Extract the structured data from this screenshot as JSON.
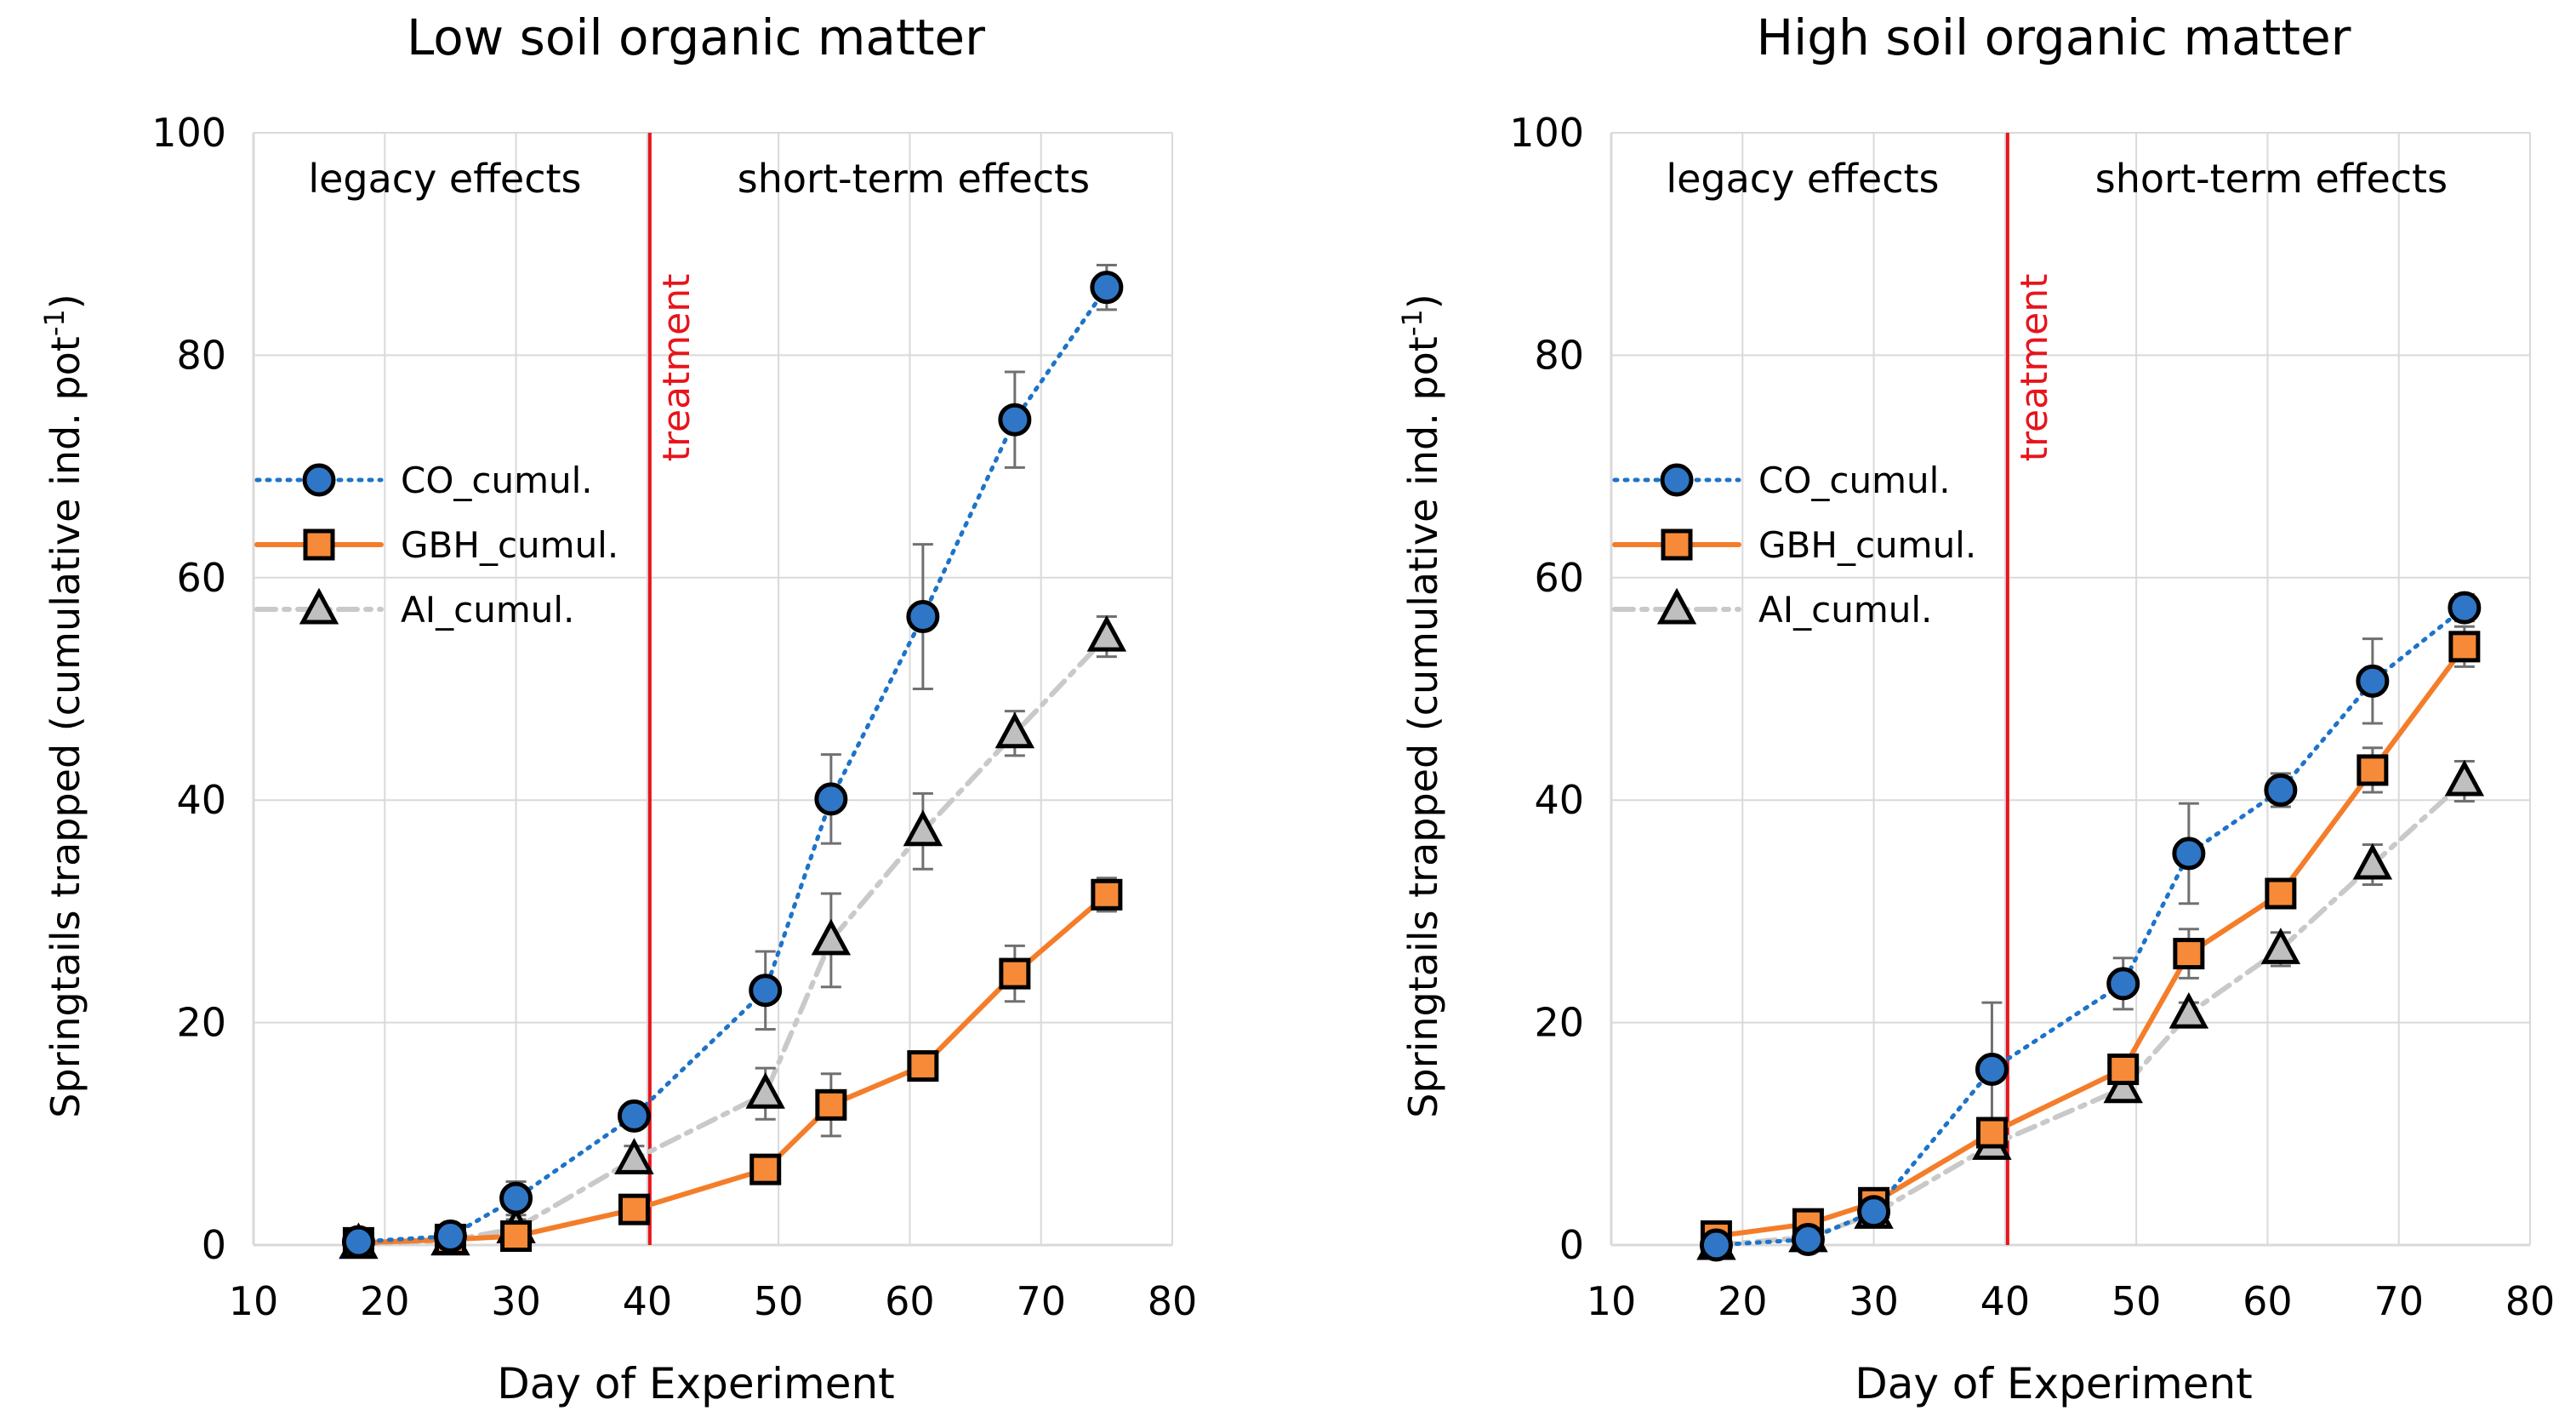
{
  "chart_data": [
    {
      "type": "line",
      "title": "Low soil organic matter",
      "xlabel": "Day of Experiment",
      "ylabel": "Springtails trapped (cumulative ind. pot",
      "ylabel_sup": "-1",
      "ylabel_close": ")",
      "xlim": [
        10,
        80
      ],
      "ylim": [
        0,
        100
      ],
      "xticks": [
        10,
        20,
        30,
        40,
        50,
        60,
        70,
        80
      ],
      "yticks": [
        0,
        20,
        40,
        60,
        80,
        100
      ],
      "grid": true,
      "treatment_day": 40,
      "annotations": {
        "legacy": "legacy effects",
        "short": "short-term effects",
        "treatment": "treatment"
      },
      "legend": [
        "CO_cumul.",
        "GBH_cumul.",
        "AI_cumul."
      ],
      "x": [
        18,
        25,
        30,
        39,
        49,
        54,
        61,
        68,
        75
      ],
      "series": [
        {
          "name": "CO_cumul.",
          "values": [
            0.3,
            0.8,
            4.2,
            11.6,
            22.9,
            40.1,
            56.5,
            74.2,
            86.1
          ],
          "errors": [
            0.3,
            0.5,
            1.5,
            1.0,
            3.5,
            4.0,
            6.5,
            4.3,
            2.0
          ]
        },
        {
          "name": "GBH_cumul.",
          "values": [
            0.2,
            0.5,
            0.8,
            3.2,
            6.8,
            12.6,
            16.1,
            24.4,
            31.5
          ],
          "errors": [
            0.2,
            0.3,
            0.3,
            0.8,
            1.0,
            2.8,
            1.0,
            2.5,
            1.5
          ]
        },
        {
          "name": "AI_cumul.",
          "values": [
            0.1,
            0.4,
            1.5,
            7.7,
            13.6,
            27.4,
            37.2,
            46.0,
            54.7
          ],
          "errors": [
            0.1,
            0.3,
            0.8,
            1.2,
            2.3,
            4.2,
            3.4,
            2.0,
            1.8
          ]
        }
      ]
    },
    {
      "type": "line",
      "title": "High soil organic matter",
      "xlabel": "Day of Experiment",
      "ylabel": "Springtails trapped (cumulative ind. pot",
      "ylabel_sup": "-1",
      "ylabel_close": ")",
      "xlim": [
        10,
        80
      ],
      "ylim": [
        0,
        100
      ],
      "xticks": [
        10,
        20,
        30,
        40,
        50,
        60,
        70,
        80
      ],
      "yticks": [
        0,
        20,
        40,
        60,
        80,
        100
      ],
      "grid": true,
      "treatment_day": 40,
      "annotations": {
        "legacy": "legacy effects",
        "short": "short-term effects",
        "treatment": "treatment"
      },
      "legend": [
        "CO_cumul.",
        "GBH_cumul.",
        "AI_cumul."
      ],
      "x": [
        18,
        25,
        30,
        39,
        49,
        54,
        61,
        68,
        75
      ],
      "series": [
        {
          "name": "CO_cumul.",
          "values": [
            0.0,
            0.5,
            3.0,
            15.8,
            23.5,
            35.2,
            40.9,
            50.7,
            57.3
          ],
          "errors": [
            0.2,
            0.3,
            0.6,
            6.0,
            2.3,
            4.5,
            1.5,
            3.8,
            1.2
          ]
        },
        {
          "name": "GBH_cumul.",
          "values": [
            0.8,
            1.9,
            3.8,
            10.1,
            15.8,
            26.2,
            31.6,
            42.7,
            53.8
          ],
          "errors": [
            0.3,
            0.4,
            0.6,
            1.0,
            1.0,
            2.2,
            1.2,
            2.0,
            1.8
          ]
        },
        {
          "name": "AI_cumul.",
          "values": [
            0.0,
            0.7,
            2.8,
            9.0,
            14.1,
            20.8,
            26.6,
            34.2,
            41.7
          ],
          "errors": [
            0.1,
            0.3,
            0.5,
            1.0,
            1.0,
            1.0,
            1.5,
            1.8,
            1.8
          ]
        }
      ]
    }
  ]
}
